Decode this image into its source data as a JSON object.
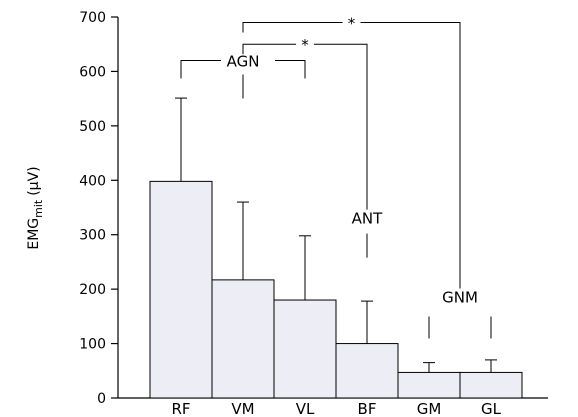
{
  "chart_data": {
    "type": "bar",
    "categories": [
      "RF",
      "VM",
      "VL",
      "BF",
      "GM",
      "GL"
    ],
    "values": [
      398,
      217,
      180,
      100,
      47,
      47
    ],
    "errors": [
      153,
      143,
      118,
      78,
      18,
      23
    ],
    "ylabel_main": "EMG",
    "ylabel_sub": "mit",
    "ylabel_unit": "(µV)",
    "ylim": [
      0,
      700
    ],
    "yticks": [
      0,
      100,
      200,
      300,
      400,
      500,
      600,
      700
    ],
    "bar_color": "#ecedf5",
    "groups": [
      {
        "label": "AGN",
        "members": [
          "RF",
          "VM",
          "VL"
        ],
        "y": 620
      },
      {
        "label": "ANT",
        "members": [
          "BF"
        ],
        "y": 280
      },
      {
        "label": "GNM",
        "members": [
          "GM",
          "GL"
        ],
        "y": 135
      }
    ],
    "significance": [
      {
        "label": "*",
        "from": "VM",
        "to": "BF",
        "y": 650
      },
      {
        "label": "*",
        "from": "VM",
        "to": "GM",
        "y": 690
      }
    ]
  }
}
